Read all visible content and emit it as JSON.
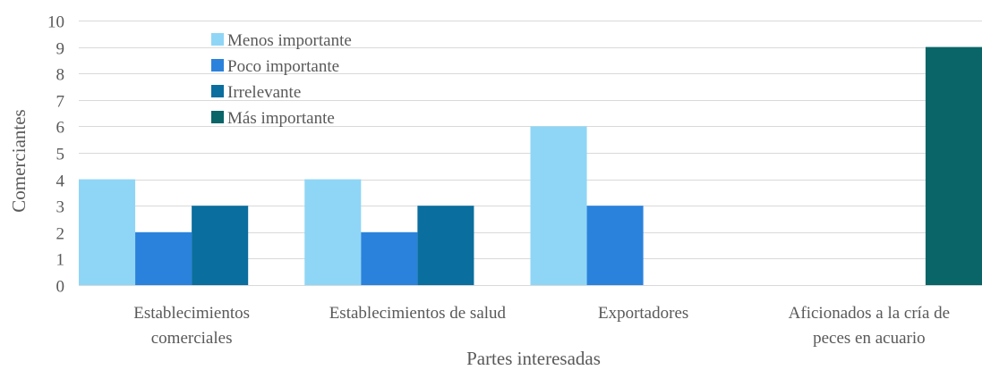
{
  "chart_data": {
    "type": "bar",
    "title": "",
    "xlabel": "Partes interesadas",
    "ylabel": "Comerciantes",
    "ylim": [
      0,
      10
    ],
    "yticks": [
      0,
      1,
      2,
      3,
      4,
      5,
      6,
      7,
      8,
      9,
      10
    ],
    "grid": true,
    "legend_position": "top-left",
    "categories": [
      "Establecimientos comerciales",
      "Establecimientos de salud",
      "Exportadores",
      "Aficionados a la cría de peces en acuario"
    ],
    "category_label_lines": [
      [
        "Establecimientos",
        "comerciales"
      ],
      [
        "Establecimientos de salud"
      ],
      [
        "Exportadores"
      ],
      [
        "Aficionados a la cría de",
        "peces en acuario"
      ]
    ],
    "series": [
      {
        "name": "Menos importante",
        "color": "#8fd6f6",
        "values": [
          4,
          4,
          6,
          0
        ]
      },
      {
        "name": "Poco importante",
        "color": "#2a82dc",
        "values": [
          2,
          2,
          3,
          0
        ]
      },
      {
        "name": "Irrelevante",
        "color": "#0a6e9e",
        "values": [
          3,
          3,
          0,
          0
        ]
      },
      {
        "name": "Más importante",
        "color": "#096568",
        "values": [
          0,
          0,
          0,
          9
        ]
      }
    ]
  }
}
